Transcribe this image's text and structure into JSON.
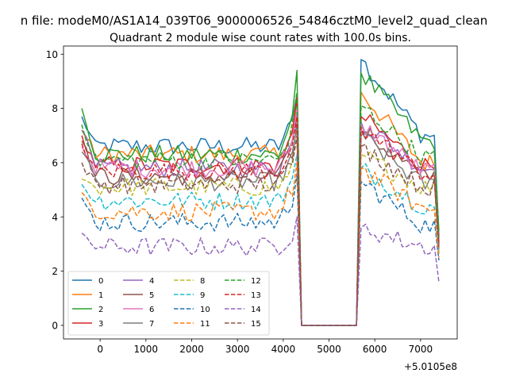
{
  "chart_data": {
    "type": "line",
    "suptitle": "n file: modeM0/AS1A14_039T06_9000006526_54846cztM0_level2_quad_clean",
    "title": "Quadrant 2 module wise count rates with 100.0s bins.",
    "xlabel": "",
    "ylabel": "",
    "x_offset_label": "+5.0105e8",
    "xlim": [
      -800,
      7800
    ],
    "ylim": [
      -0.5,
      10.3
    ],
    "x_ticks": [
      0,
      1000,
      2000,
      3000,
      4000,
      5000,
      6000,
      7000
    ],
    "x_tick_labels": [
      "0",
      "1000",
      "2000",
      "3000",
      "4000",
      "5000",
      "6000",
      "7000"
    ],
    "y_ticks": [
      0,
      2,
      4,
      6,
      8,
      10
    ],
    "y_tick_labels": [
      "0",
      "2",
      "4",
      "6",
      "8",
      "10"
    ],
    "legend": {
      "placement": "lower-left",
      "ncol": 4
    },
    "x_start": -400,
    "x_step": 100,
    "gap": {
      "start_index": 48,
      "end_index": 60,
      "value": 0
    },
    "peak_index": 47,
    "post_peak_index": 61,
    "x_end": 7400,
    "series": [
      {
        "name": "0",
        "color": "#1f77b4",
        "dash": "solid",
        "baseline": 6.6,
        "start": 7.7,
        "peak": 8.5,
        "post": 9.8,
        "post_end": 7.0,
        "end": 3.3
      },
      {
        "name": "1",
        "color": "#ff7f0e",
        "dash": "solid",
        "baseline": 6.3,
        "start": 7.2,
        "peak": 8.3,
        "post": 8.6,
        "post_end": 6.0,
        "end": 3.0
      },
      {
        "name": "2",
        "color": "#2ca02c",
        "dash": "solid",
        "baseline": 6.3,
        "start": 8.0,
        "peak": 9.4,
        "post": 9.3,
        "post_end": 6.8,
        "end": 3.5
      },
      {
        "name": "3",
        "color": "#d62728",
        "dash": "solid",
        "baseline": 5.9,
        "start": 7.0,
        "peak": 8.4,
        "post": 7.7,
        "post_end": 5.9,
        "end": 3.1
      },
      {
        "name": "4",
        "color": "#9467bd",
        "dash": "solid",
        "baseline": 5.8,
        "start": 7.2,
        "peak": 7.8,
        "post": 7.5,
        "post_end": 5.8,
        "end": 3.0
      },
      {
        "name": "5",
        "color": "#8c564b",
        "dash": "solid",
        "baseline": 5.5,
        "start": 6.8,
        "peak": 7.5,
        "post": 7.2,
        "post_end": 5.5,
        "end": 2.9
      },
      {
        "name": "6",
        "color": "#e377c2",
        "dash": "solid",
        "baseline": 5.8,
        "start": 6.6,
        "peak": 8.0,
        "post": 7.4,
        "post_end": 5.7,
        "end": 3.1
      },
      {
        "name": "7",
        "color": "#7f7f7f",
        "dash": "solid",
        "baseline": 5.3,
        "start": 6.4,
        "peak": 7.3,
        "post": 7.0,
        "post_end": 5.2,
        "end": 2.8
      },
      {
        "name": "8",
        "color": "#bcbd22",
        "dash": "dashed",
        "baseline": 5.1,
        "start": 5.4,
        "peak": 6.9,
        "post": 6.3,
        "post_end": 5.1,
        "end": 2.7
      },
      {
        "name": "9",
        "color": "#17becf",
        "dash": "dashed",
        "baseline": 4.6,
        "start": 5.2,
        "peak": 6.3,
        "post": 5.8,
        "post_end": 4.4,
        "end": 2.6
      },
      {
        "name": "10",
        "color": "#1f77b4",
        "dash": "dashed",
        "baseline": 3.8,
        "start": 4.7,
        "peak": 5.6,
        "post": 5.3,
        "post_end": 3.7,
        "end": 2.4
      },
      {
        "name": "11",
        "color": "#ff7f0e",
        "dash": "dashed",
        "baseline": 4.2,
        "start": 4.9,
        "peak": 6.0,
        "post": 5.8,
        "post_end": 4.3,
        "end": 2.5
      },
      {
        "name": "12",
        "color": "#2ca02c",
        "dash": "dashed",
        "baseline": 6.1,
        "start": 7.4,
        "peak": 8.6,
        "post": 8.1,
        "post_end": 6.2,
        "end": 3.2
      },
      {
        "name": "13",
        "color": "#d62728",
        "dash": "dashed",
        "baseline": 5.7,
        "start": 6.7,
        "peak": 7.7,
        "post": 7.3,
        "post_end": 5.6,
        "end": 3.0
      },
      {
        "name": "14",
        "color": "#9467bd",
        "dash": "dashed",
        "baseline": 2.9,
        "start": 3.4,
        "peak": 4.0,
        "post": 3.6,
        "post_end": 2.9,
        "end": 1.6
      },
      {
        "name": "15",
        "color": "#8c564b",
        "dash": "dashed",
        "baseline": 5.2,
        "start": 6.0,
        "peak": 7.0,
        "post": 6.6,
        "post_end": 5.1,
        "end": 2.8
      }
    ]
  }
}
